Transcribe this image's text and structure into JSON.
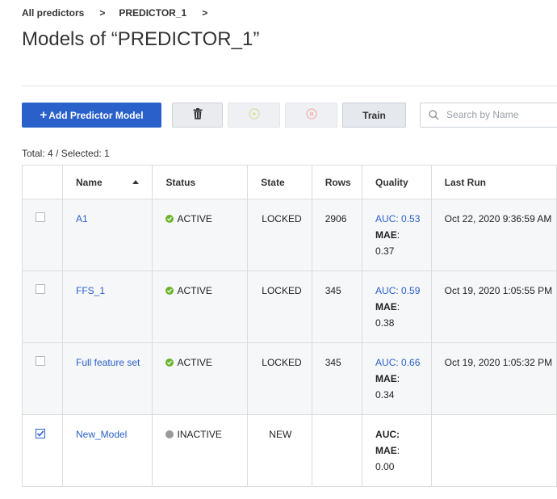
{
  "breadcrumb": {
    "root": "All predictors",
    "sep": ">",
    "current": "PREDICTOR_1"
  },
  "title": "Models of “PREDICTOR_1”",
  "toolbar": {
    "add_label": "Add Predictor Model",
    "add_plus": "+",
    "train_label": "Train",
    "search_placeholder": "Search by Name"
  },
  "summary": "Total: 4 / Selected: 1",
  "table": {
    "headers": {
      "name": "Name",
      "status": "Status",
      "state": "State",
      "rows": "Rows",
      "quality": "Quality",
      "last_run": "Last Run"
    },
    "rows": [
      {
        "checked": false,
        "name": "A1",
        "status": "ACTIVE",
        "state": "LOCKED",
        "rows": "2906",
        "auc_label": "AUC: 0.53",
        "mae_label": "MAE",
        "mae_value": ":",
        "mae_num": "0.37",
        "last_run": "Oct 22, 2020 9:36:59 AM"
      },
      {
        "checked": false,
        "name": "FFS_1",
        "status": "ACTIVE",
        "state": "LOCKED",
        "rows": "345",
        "auc_label": "AUC: 0.59",
        "mae_label": "MAE",
        "mae_value": ":",
        "mae_num": "0.38",
        "last_run": "Oct 19, 2020 1:05:55 PM"
      },
      {
        "checked": false,
        "name": "Full feature set",
        "status": "ACTIVE",
        "state": "LOCKED",
        "rows": "345",
        "auc_label": "AUC: 0.66",
        "mae_label": "MAE",
        "mae_value": ":",
        "mae_num": "0.34",
        "last_run": "Oct 19, 2020 1:05:32 PM"
      },
      {
        "checked": true,
        "name": "New_Model",
        "status": "INACTIVE",
        "state": "NEW",
        "rows": "",
        "auc_label": "AUC:",
        "mae_label": "MAE",
        "mae_value": ":",
        "mae_num": "0.00",
        "last_run": ""
      }
    ]
  },
  "colors": {
    "accent": "#2a60c9",
    "active": "#6ab42d",
    "inactive": "#9a9a9a"
  },
  "icons": {
    "delete": "trash-icon",
    "start": "play-icon",
    "stop": "stop-icon",
    "search": "search-icon",
    "sort": "sort-ascending-icon"
  }
}
